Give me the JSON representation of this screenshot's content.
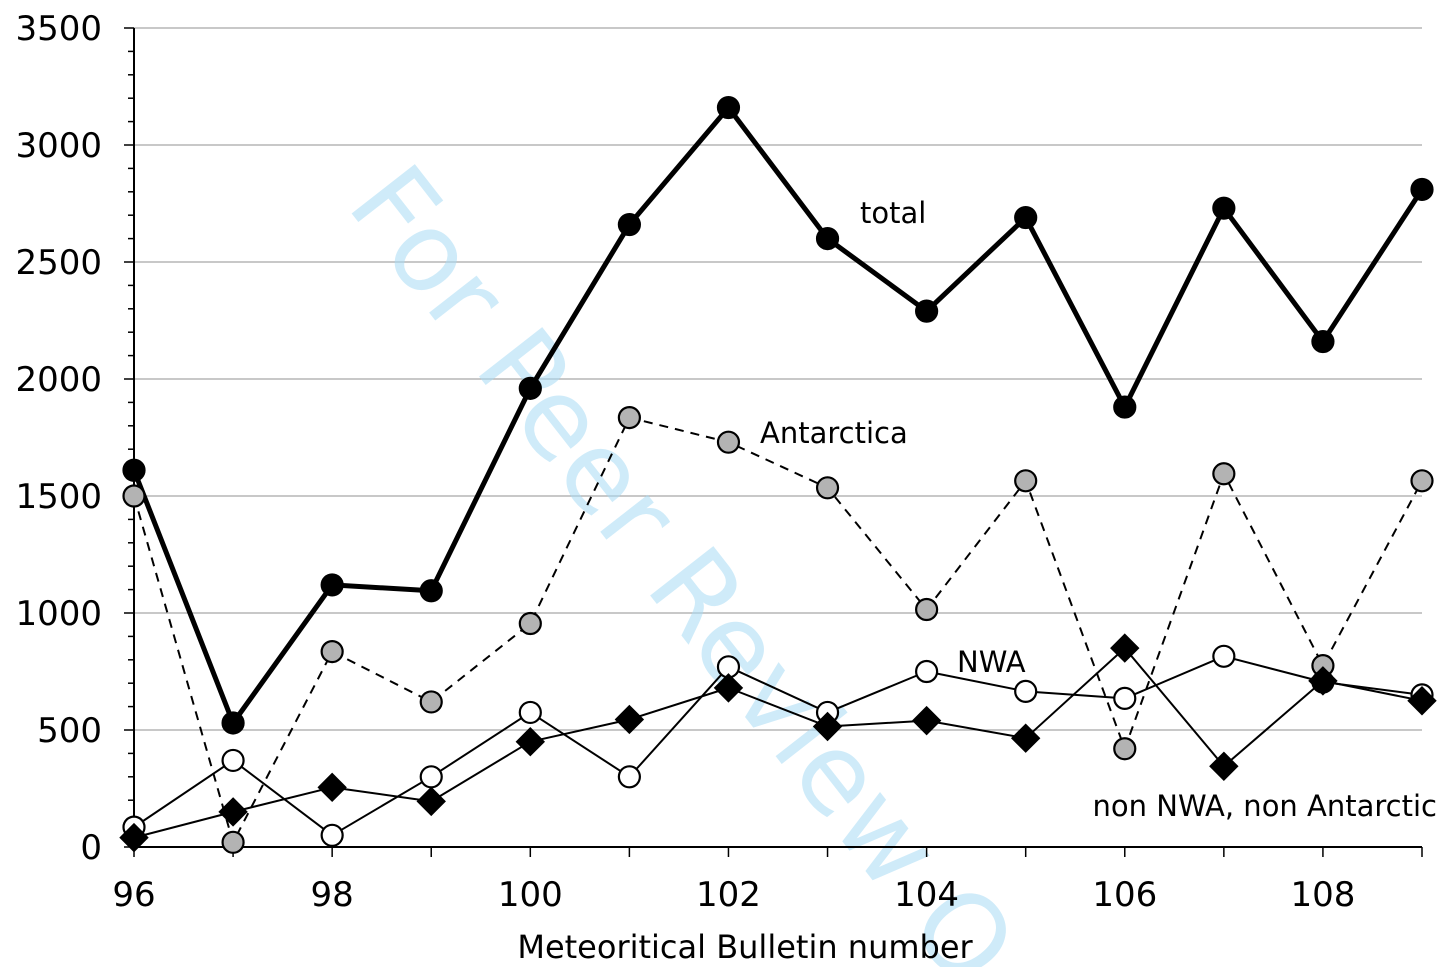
{
  "chart_data": {
    "type": "line",
    "xlabel": "Meteoritical Bulletin number",
    "ylabel": "",
    "xlim": [
      96,
      109
    ],
    "ylim": [
      0,
      3500
    ],
    "x_ticks": [
      96,
      98,
      100,
      102,
      104,
      106,
      108
    ],
    "y_ticks": [
      0,
      500,
      1000,
      1500,
      2000,
      2500,
      3000,
      3500
    ],
    "grid": "horizontal",
    "x": [
      96,
      97,
      98,
      99,
      100,
      101,
      102,
      103,
      104,
      105,
      106,
      107,
      108,
      109
    ],
    "series": [
      {
        "name": "total",
        "line": "solid-thick",
        "marker": "circle-black",
        "values": [
          1610,
          530,
          1120,
          1095,
          1960,
          2660,
          3160,
          2600,
          2290,
          2690,
          1880,
          2730,
          2160,
          2810
        ]
      },
      {
        "name": "Antarctica",
        "line": "dashed",
        "marker": "circle-gray",
        "values": [
          1500,
          20,
          835,
          620,
          955,
          1835,
          1730,
          1535,
          1015,
          1565,
          420,
          1595,
          775,
          1565
        ]
      },
      {
        "name": "NWA",
        "line": "solid-thin",
        "marker": "circle-white",
        "values": [
          85,
          370,
          50,
          300,
          575,
          300,
          770,
          575,
          750,
          665,
          635,
          815,
          705,
          650
        ]
      },
      {
        "name": "non NWA, non Antarctic",
        "line": "solid-thin",
        "marker": "diamond-black",
        "values": [
          40,
          150,
          255,
          195,
          450,
          545,
          680,
          515,
          540,
          465,
          850,
          345,
          710,
          625
        ]
      }
    ],
    "colors": {
      "axis": "#000000",
      "grid": "#a6a6a6",
      "gray_marker": "#b3b3b3",
      "watermark": "#a8dcf5"
    }
  },
  "watermark_text": "For Peer Review O"
}
